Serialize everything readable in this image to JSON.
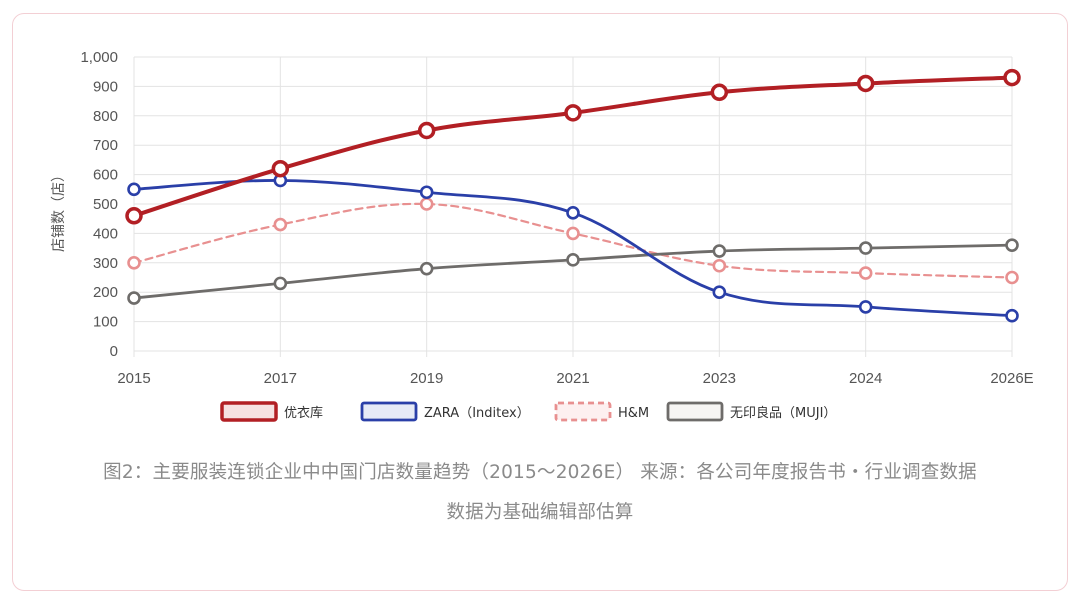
{
  "chart_data": {
    "type": "line",
    "ylabel": "店铺数（店）",
    "xlabel": "",
    "x": [
      "2015",
      "2017",
      "2019",
      "2021",
      "2023",
      "2024",
      "2026E"
    ],
    "ylim": [
      0,
      1000
    ],
    "yticks": [
      "0",
      "100",
      "200",
      "300",
      "400",
      "500",
      "600",
      "700",
      "800",
      "900",
      "1,000"
    ],
    "grid": true,
    "legend_position": "bottom",
    "series": [
      {
        "name": "优衣库",
        "color": "#b21f24",
        "style": "solid",
        "values": [
          460,
          620,
          750,
          810,
          880,
          910,
          930
        ]
      },
      {
        "name": "ZARA（Inditex）",
        "color": "#2a3fa8",
        "style": "solid",
        "values": [
          550,
          580,
          540,
          470,
          200,
          150,
          120
        ]
      },
      {
        "name": "H&M",
        "color": "#e89090",
        "style": "dashed",
        "values": [
          300,
          430,
          500,
          400,
          290,
          265,
          250
        ]
      },
      {
        "name": "无印良品（MUJI）",
        "color": "#6e6c6a",
        "style": "solid",
        "values": [
          180,
          230,
          280,
          310,
          340,
          350,
          360
        ]
      }
    ]
  },
  "caption": {
    "line1": "图2：主要服装连锁企业中中国门店数量趋势（2015～2026E） 来源：各公司年度报告书・行业调查数据",
    "line2": "数据为基础编辑部估算"
  }
}
